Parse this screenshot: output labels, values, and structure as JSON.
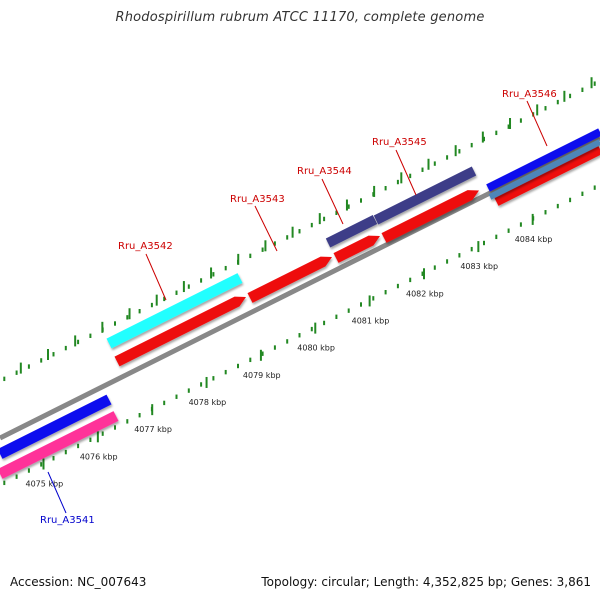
{
  "header": {
    "title": "Rhodospirillum rubrum ATCC 11170, complete genome"
  },
  "footer": {
    "accession": "Accession: NC_007643",
    "summary": "Topology: circular; Length: 4,352,825 bp; Genes: 3,861"
  },
  "colors": {
    "forward_cds": "#ee1111",
    "backbone": "#888888",
    "tick_mark": "#228822",
    "forward_label": "#cc0000",
    "reverse_label": "#0000cc"
  },
  "scale_ticks": [
    {
      "label": "4075 kbp",
      "kbp": 4075
    },
    {
      "label": "4076 kbp",
      "kbp": 4076
    },
    {
      "label": "4077 kbp",
      "kbp": 4077
    },
    {
      "label": "4078 kbp",
      "kbp": 4078
    },
    {
      "label": "4079 kbp",
      "kbp": 4079
    },
    {
      "label": "4080 kbp",
      "kbp": 4080
    },
    {
      "label": "4081 kbp",
      "kbp": 4081
    },
    {
      "label": "4082 kbp",
      "kbp": 4082
    },
    {
      "label": "4083 kbp",
      "kbp": 4083
    },
    {
      "label": "4084 kbp",
      "kbp": 4084
    }
  ],
  "genes": [
    {
      "name": "Rru_A3541",
      "strand": "reverse"
    },
    {
      "name": "Rru_A3542",
      "strand": "forward"
    },
    {
      "name": "Rru_A3543",
      "strand": "forward"
    },
    {
      "name": "Rru_A3544",
      "strand": "forward"
    },
    {
      "name": "Rru_A3545",
      "strand": "forward"
    },
    {
      "name": "Rru_A3546",
      "strand": "forward"
    }
  ],
  "feature_tracks": [
    {
      "id": "cyan-feature",
      "color": "#22ffff"
    },
    {
      "id": "navy-feature",
      "color": "#3d3d88"
    },
    {
      "id": "blue-feature",
      "color": "#1111ee"
    },
    {
      "id": "steel-feature",
      "color": "#4d86b8"
    },
    {
      "id": "pink-feature",
      "color": "#ff3399"
    }
  ]
}
